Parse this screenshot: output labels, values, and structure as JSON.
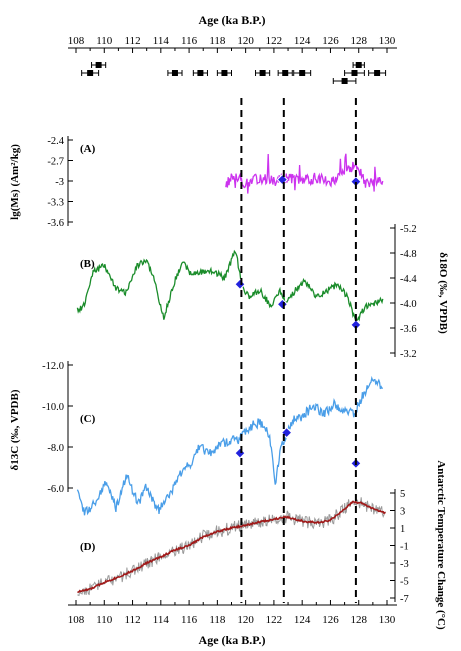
{
  "chart_data": {
    "type": "line",
    "x_axis": {
      "label": "Age  (ka B.P.)",
      "range": [
        107.5,
        130.5
      ],
      "ticks": [
        108,
        110,
        112,
        114,
        116,
        118,
        120,
        122,
        124,
        126,
        128,
        130
      ],
      "tick_labels": [
        "108",
        "110",
        "112",
        "114",
        "116",
        "118",
        "120",
        "122",
        "124",
        "126",
        "128",
        "130"
      ]
    },
    "dating_points": [
      {
        "age": 109.6,
        "err": 0.5
      },
      {
        "age": 109.0,
        "err": 0.6
      },
      {
        "age": 115.0,
        "err": 0.5
      },
      {
        "age": 116.8,
        "err": 0.5
      },
      {
        "age": 118.5,
        "err": 0.5
      },
      {
        "age": 121.2,
        "err": 0.5
      },
      {
        "age": 122.8,
        "err": 0.5
      },
      {
        "age": 124.0,
        "err": 0.6
      },
      {
        "age": 127.7,
        "err": 0.7
      },
      {
        "age": 128.0,
        "err": 0.4
      },
      {
        "age": 127.0,
        "err": 0.8
      },
      {
        "age": 129.3,
        "err": 0.6
      }
    ],
    "dashed_lines": [
      119.7,
      122.7,
      127.8
    ],
    "panels": [
      {
        "id": "A",
        "label": "(A)",
        "ylabel": "lg(Ms) (Am²/kg)",
        "y_axis_side": "left",
        "y_ticks": [
          -2.4,
          -2.7,
          -3.0,
          -3.3,
          -3.6
        ],
        "y_tick_labels": [
          "-2.4",
          "-2.7",
          "-3",
          "-3.3",
          "-3.6"
        ],
        "color": "#cc33ee",
        "x_range": [
          118.6,
          129.7
        ],
        "y_range": [
          -3.45,
          -2.15
        ],
        "seed": 13,
        "anchors": [
          [
            118.6,
            -3.05
          ],
          [
            119.3,
            -2.9
          ],
          [
            120.0,
            -3.05
          ],
          [
            121.0,
            -2.95
          ],
          [
            122.0,
            -3.0
          ],
          [
            122.8,
            -2.95
          ],
          [
            124.0,
            -3.0
          ],
          [
            125.0,
            -2.95
          ],
          [
            126.0,
            -3.0
          ],
          [
            127.0,
            -2.9
          ],
          [
            127.8,
            -2.75
          ],
          [
            128.5,
            -3.05
          ],
          [
            129.7,
            -3.0
          ]
        ],
        "markers": [
          [
            122.6,
            -2.98
          ],
          [
            127.8,
            -3.01
          ]
        ]
      },
      {
        "id": "B",
        "label": "(B)",
        "ylabel": "δ18O (‰, VPDB)",
        "y_axis_side": "right",
        "y_ticks": [
          -5.2,
          -4.8,
          -4.4,
          -4.0,
          -3.6,
          -3.2
        ],
        "y_tick_labels": [
          "-5.2",
          "-4.8",
          "-4.4",
          "-4.0",
          "-3.6",
          "-3.2"
        ],
        "color": "#1a8c2a",
        "x_range": [
          108.1,
          129.7
        ],
        "y_range": [
          -5.05,
          -3.45
        ],
        "seed": 7,
        "anchors": [
          [
            108.1,
            -3.9
          ],
          [
            108.5,
            -3.92
          ],
          [
            109.2,
            -4.5
          ],
          [
            110.0,
            -4.6
          ],
          [
            110.8,
            -4.25
          ],
          [
            111.5,
            -4.15
          ],
          [
            112.3,
            -4.6
          ],
          [
            113.0,
            -4.68
          ],
          [
            113.5,
            -4.4
          ],
          [
            114.2,
            -3.75
          ],
          [
            114.9,
            -4.3
          ],
          [
            115.5,
            -4.65
          ],
          [
            116.2,
            -4.45
          ],
          [
            117.0,
            -4.5
          ],
          [
            117.8,
            -4.5
          ],
          [
            118.5,
            -4.4
          ],
          [
            119.3,
            -4.85
          ],
          [
            119.7,
            -4.3
          ],
          [
            120.2,
            -4.1
          ],
          [
            121.0,
            -4.2
          ],
          [
            121.8,
            -3.95
          ],
          [
            122.4,
            -4.2
          ],
          [
            122.9,
            -4.0
          ],
          [
            123.5,
            -4.2
          ],
          [
            124.2,
            -4.35
          ],
          [
            125.0,
            -4.1
          ],
          [
            125.8,
            -4.2
          ],
          [
            126.5,
            -4.3
          ],
          [
            127.2,
            -4.1
          ],
          [
            127.8,
            -3.7
          ],
          [
            128.5,
            -3.95
          ],
          [
            129.7,
            -4.05
          ]
        ],
        "markers": [
          [
            119.6,
            -4.3
          ],
          [
            122.6,
            -3.98
          ],
          [
            127.8,
            -3.65
          ]
        ]
      },
      {
        "id": "C",
        "label": "(C)",
        "ylabel": "δ13C (‰, VPDB)",
        "y_axis_side": "left",
        "y_ticks": [
          -12.0,
          -10.0,
          -8.0,
          -6.0
        ],
        "y_tick_labels": [
          "-12.0",
          "-10.0",
          "-8.0",
          "-6.0"
        ],
        "color": "#4a9ee8",
        "x_range": [
          108.1,
          129.7
        ],
        "y_range": [
          -12.3,
          -4.6
        ],
        "seed": 21,
        "anchors": [
          [
            108.1,
            -5.8
          ],
          [
            108.6,
            -4.8
          ],
          [
            109.3,
            -5.2
          ],
          [
            110.2,
            -6.3
          ],
          [
            110.8,
            -5.0
          ],
          [
            111.6,
            -6.6
          ],
          [
            112.4,
            -5.2
          ],
          [
            113.0,
            -6.1
          ],
          [
            113.8,
            -4.9
          ],
          [
            114.6,
            -5.6
          ],
          [
            115.3,
            -6.6
          ],
          [
            116.1,
            -7.2
          ],
          [
            116.7,
            -8.0
          ],
          [
            117.4,
            -7.7
          ],
          [
            118.2,
            -8.1
          ],
          [
            118.9,
            -8.3
          ],
          [
            119.6,
            -8.4
          ],
          [
            120.3,
            -9.0
          ],
          [
            121.0,
            -9.2
          ],
          [
            121.7,
            -8.6
          ],
          [
            122.1,
            -6.2
          ],
          [
            122.5,
            -8.0
          ],
          [
            122.9,
            -8.7
          ],
          [
            123.4,
            -9.3
          ],
          [
            124.0,
            -9.5
          ],
          [
            124.8,
            -10.0
          ],
          [
            125.5,
            -9.6
          ],
          [
            126.3,
            -10.1
          ],
          [
            127.0,
            -9.8
          ],
          [
            127.6,
            -9.6
          ],
          [
            128.3,
            -10.5
          ],
          [
            129.0,
            -11.4
          ],
          [
            129.7,
            -10.8
          ]
        ],
        "markers": [
          [
            119.6,
            -7.7
          ],
          [
            122.9,
            -8.7
          ],
          [
            127.8,
            -7.2
          ]
        ]
      },
      {
        "id": "D",
        "label": "(D)",
        "ylabel": "Antarctic Temperature Change (°C)",
        "y_axis_side": "right",
        "y_ticks": [
          5,
          3,
          1,
          -1,
          -3,
          -5,
          -7
        ],
        "y_tick_labels": [
          "5",
          "3",
          "1",
          "-1",
          "-3",
          "-5",
          "-7"
        ],
        "color": "#a01818",
        "noise_color": "#9a9a9a",
        "x_range": [
          108.1,
          129.9
        ],
        "y_range": [
          -7.5,
          5.5
        ],
        "seed": 33,
        "anchors": [
          [
            108.1,
            -6.3
          ],
          [
            109.0,
            -6.0
          ],
          [
            110.0,
            -5.2
          ],
          [
            111.0,
            -4.6
          ],
          [
            112.0,
            -3.9
          ],
          [
            113.0,
            -3.0
          ],
          [
            114.0,
            -2.3
          ],
          [
            115.0,
            -1.5
          ],
          [
            116.0,
            -1.0
          ],
          [
            117.0,
            0.0
          ],
          [
            118.0,
            0.6
          ],
          [
            119.0,
            1.0
          ],
          [
            120.0,
            1.3
          ],
          [
            121.0,
            1.7
          ],
          [
            122.0,
            2.0
          ],
          [
            122.8,
            2.3
          ],
          [
            123.5,
            2.0
          ],
          [
            124.3,
            1.7
          ],
          [
            125.2,
            1.6
          ],
          [
            126.0,
            1.9
          ],
          [
            126.8,
            2.9
          ],
          [
            127.6,
            4.0
          ],
          [
            128.3,
            3.8
          ],
          [
            129.0,
            3.2
          ],
          [
            129.9,
            2.7
          ]
        ],
        "markers": []
      }
    ]
  }
}
